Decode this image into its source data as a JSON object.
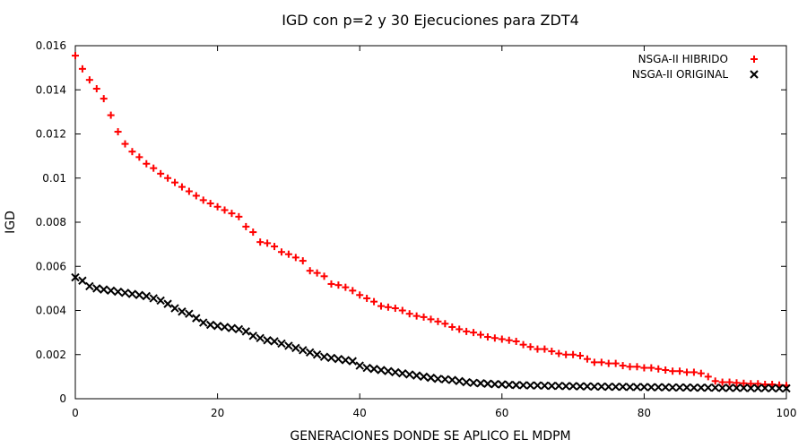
{
  "chart_data": {
    "type": "scatter",
    "title": "IGD con p=2 y 30 Ejecuciones para ZDT4",
    "xlabel": "GENERACIONES DONDE SE APLICO EL MDPM",
    "ylabel": "IGD",
    "xlim": [
      0,
      100
    ],
    "ylim": [
      0,
      0.016
    ],
    "x_ticks": [
      "0",
      "20",
      "40",
      "60",
      "80",
      "100"
    ],
    "y_ticks": [
      "0",
      "0.002",
      "0.004",
      "0.006",
      "0.008",
      "0.01",
      "0.012",
      "0.014",
      "0.016"
    ],
    "grid": false,
    "legend_position": "top-right",
    "x": [
      0,
      1,
      2,
      3,
      4,
      5,
      6,
      7,
      8,
      9,
      10,
      11,
      12,
      13,
      14,
      15,
      16,
      17,
      18,
      19,
      20,
      21,
      22,
      23,
      24,
      25,
      26,
      27,
      28,
      29,
      30,
      31,
      32,
      33,
      34,
      35,
      36,
      37,
      38,
      39,
      40,
      41,
      42,
      43,
      44,
      45,
      46,
      47,
      48,
      49,
      50,
      51,
      52,
      53,
      54,
      55,
      56,
      57,
      58,
      59,
      60,
      61,
      62,
      63,
      64,
      65,
      66,
      67,
      68,
      69,
      70,
      71,
      72,
      73,
      74,
      75,
      76,
      77,
      78,
      79,
      80,
      81,
      82,
      83,
      84,
      85,
      86,
      87,
      88,
      89,
      90,
      91,
      92,
      93,
      94,
      95,
      96,
      97,
      98,
      99,
      100
    ],
    "series": [
      {
        "name": "NSGA-II HIBRIDO",
        "color": "#ff0000",
        "marker": "plus",
        "values": [
          0.01555,
          0.01495,
          0.01445,
          0.01405,
          0.0136,
          0.01285,
          0.0121,
          0.01155,
          0.0112,
          0.01095,
          0.01065,
          0.01045,
          0.0102,
          0.01,
          0.0098,
          0.0096,
          0.0094,
          0.0092,
          0.009,
          0.00885,
          0.0087,
          0.00855,
          0.0084,
          0.00825,
          0.0078,
          0.00755,
          0.0071,
          0.00705,
          0.0069,
          0.00665,
          0.00655,
          0.0064,
          0.00625,
          0.0058,
          0.0057,
          0.00555,
          0.0052,
          0.00515,
          0.00505,
          0.0049,
          0.0047,
          0.00455,
          0.0044,
          0.0042,
          0.00415,
          0.0041,
          0.004,
          0.00385,
          0.00375,
          0.0037,
          0.0036,
          0.0035,
          0.0034,
          0.00325,
          0.00315,
          0.00305,
          0.003,
          0.0029,
          0.0028,
          0.00275,
          0.0027,
          0.00265,
          0.0026,
          0.00245,
          0.00235,
          0.00225,
          0.00225,
          0.00215,
          0.00205,
          0.002,
          0.002,
          0.00195,
          0.0018,
          0.00165,
          0.00165,
          0.0016,
          0.0016,
          0.0015,
          0.00145,
          0.00145,
          0.0014,
          0.0014,
          0.00135,
          0.0013,
          0.00125,
          0.00125,
          0.0012,
          0.0012,
          0.00115,
          0.001,
          0.0008,
          0.00075,
          0.00075,
          0.00072,
          0.0007,
          0.00068,
          0.00068,
          0.00065,
          0.00065,
          0.00062,
          0.0006
        ]
      },
      {
        "name": "NSGA-II ORIGINAL",
        "color": "#000000",
        "marker": "cross",
        "values": [
          0.0055,
          0.00535,
          0.0051,
          0.005,
          0.00495,
          0.0049,
          0.00485,
          0.0048,
          0.00475,
          0.0047,
          0.00465,
          0.00455,
          0.00445,
          0.0043,
          0.0041,
          0.00395,
          0.00385,
          0.00365,
          0.00345,
          0.00335,
          0.0033,
          0.00325,
          0.0032,
          0.00315,
          0.00305,
          0.00285,
          0.00275,
          0.00265,
          0.0026,
          0.0025,
          0.0024,
          0.0023,
          0.0022,
          0.0021,
          0.002,
          0.0019,
          0.00185,
          0.0018,
          0.00175,
          0.0017,
          0.0015,
          0.0014,
          0.00135,
          0.0013,
          0.00125,
          0.0012,
          0.00115,
          0.0011,
          0.00105,
          0.001,
          0.00095,
          0.0009,
          0.00088,
          0.00085,
          0.0008,
          0.00075,
          0.00072,
          0.0007,
          0.00068,
          0.00066,
          0.00065,
          0.00063,
          0.00062,
          0.00061,
          0.0006,
          0.0006,
          0.00059,
          0.00058,
          0.00058,
          0.00057,
          0.00057,
          0.00056,
          0.00056,
          0.00055,
          0.00055,
          0.00054,
          0.00054,
          0.00054,
          0.00053,
          0.00053,
          0.00053,
          0.00052,
          0.00052,
          0.00052,
          0.00051,
          0.00051,
          0.00051,
          0.0005,
          0.0005,
          0.0005,
          0.0005,
          0.00049,
          0.00049,
          0.00049,
          0.00049,
          0.00048,
          0.00048,
          0.00048,
          0.00048,
          0.00047,
          0.00047
        ]
      }
    ]
  }
}
